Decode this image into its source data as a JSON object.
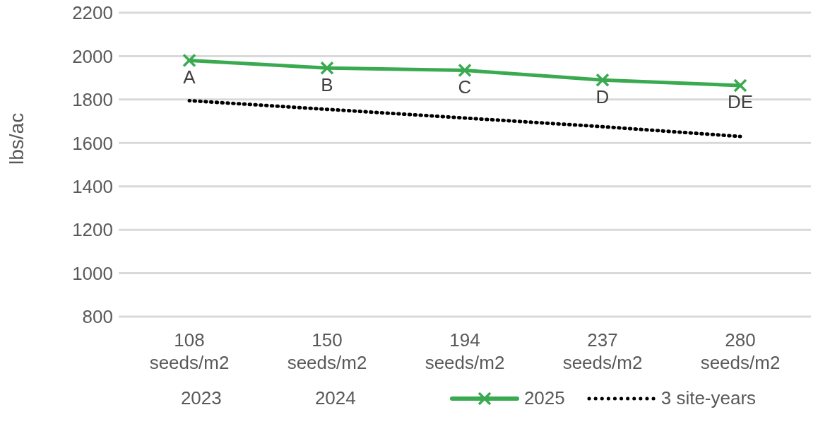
{
  "chart_data": {
    "type": "line",
    "ylabel": "lbs/ac",
    "categories": [
      "108 seeds/m2",
      "150 seeds/m2",
      "194 seeds/m2",
      "237 seeds/m2",
      "280 seeds/m2"
    ],
    "series": [
      {
        "name": "2023",
        "values": [
          null,
          null,
          null,
          null,
          null
        ]
      },
      {
        "name": "2024",
        "values": [
          null,
          null,
          null,
          null,
          null
        ]
      },
      {
        "name": "2025",
        "color": "#3aaa50",
        "marker": "cross",
        "line_style": "solid",
        "values": [
          1980,
          1945,
          1935,
          1890,
          1865
        ]
      },
      {
        "name": "3 site-years",
        "color": "#000000",
        "marker": "none",
        "line_style": "dotted",
        "values": [
          1795,
          1755,
          1715,
          1675,
          1630
        ]
      }
    ],
    "ylim": [
      800,
      2200
    ],
    "yticks": [
      800,
      1000,
      1200,
      1400,
      1600,
      1800,
      2000,
      2200
    ],
    "grid": "y",
    "legend": "bottom",
    "annotations": [
      {
        "text": "A",
        "x": "108 seeds/m2",
        "y": 1980
      },
      {
        "text": "B",
        "x": "150 seeds/m2",
        "y": 1945
      },
      {
        "text": "C",
        "x": "194 seeds/m2",
        "y": 1935
      },
      {
        "text": "D",
        "x": "237 seeds/m2",
        "y": 1890
      },
      {
        "text": "DE",
        "x": "280 seeds/m2",
        "y": 1865
      }
    ]
  }
}
